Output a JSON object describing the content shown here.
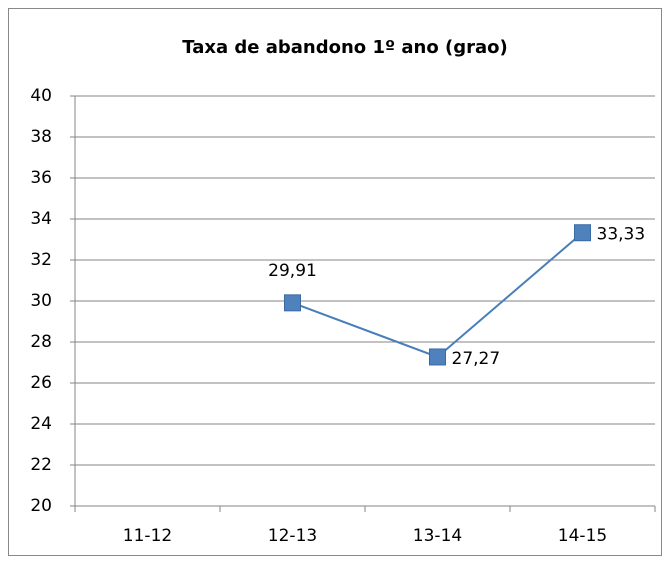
{
  "chart_data": {
    "type": "line",
    "title": "Taxa de abandono 1º ano (grao)",
    "categories": [
      "11-12",
      "12-13",
      "13-14",
      "14-15"
    ],
    "series": [
      {
        "name": "Taxa de abandono",
        "color": "#4a7ebb",
        "values": [
          null,
          29.91,
          27.27,
          33.33
        ],
        "value_labels": [
          null,
          "29,91",
          "27,27",
          "33,33"
        ]
      }
    ],
    "ylim": [
      20,
      40
    ],
    "yticks": [
      20,
      22,
      24,
      26,
      28,
      30,
      32,
      34,
      36,
      38,
      40
    ],
    "grid": true
  }
}
